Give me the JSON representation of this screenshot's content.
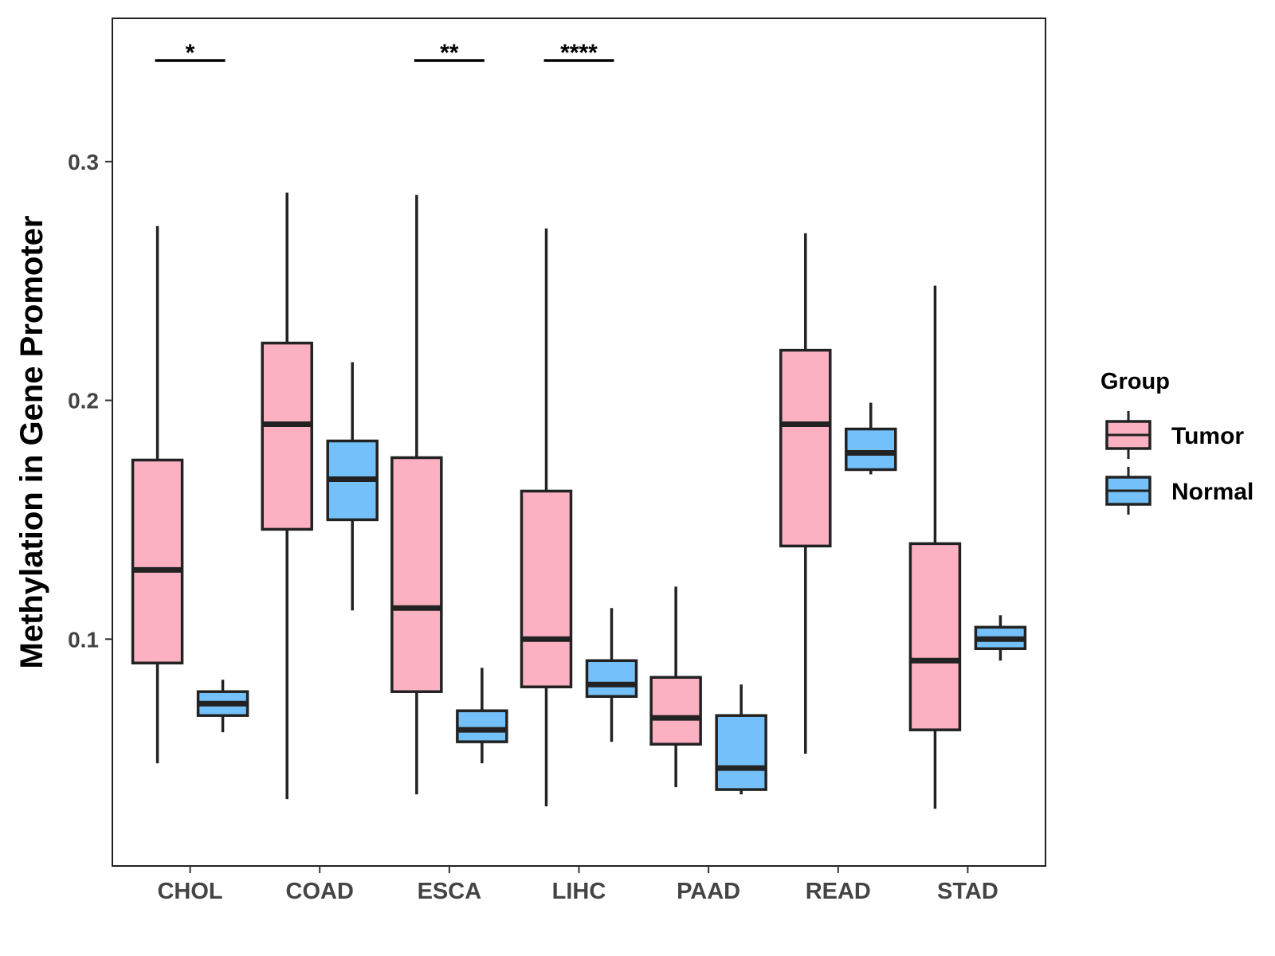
{
  "chart_data": {
    "type": "boxplot",
    "ylabel": "Methylation in Gene Promoter",
    "xlabel": "",
    "ylim": [
      0.005,
      0.36
    ],
    "yticks": [
      0.1,
      0.2,
      0.3
    ],
    "ytick_labels": [
      "0.1",
      "0.2",
      "0.3"
    ],
    "categories": [
      "CHOL",
      "COAD",
      "ESCA",
      "LIHC",
      "PAAD",
      "READ",
      "STAD"
    ],
    "legend": {
      "title": "Group",
      "position": "right",
      "entries": [
        {
          "name": "Tumor",
          "color": "#FCB1C3"
        },
        {
          "name": "Normal",
          "color": "#74C0FA"
        }
      ]
    },
    "series": [
      {
        "name": "Tumor",
        "color": "#FCB1C3",
        "boxes": [
          {
            "min": 0.048,
            "q1": 0.09,
            "median": 0.129,
            "q3": 0.175,
            "max": 0.273
          },
          {
            "min": 0.033,
            "q1": 0.146,
            "median": 0.19,
            "q3": 0.224,
            "max": 0.287
          },
          {
            "min": 0.035,
            "q1": 0.078,
            "median": 0.113,
            "q3": 0.176,
            "max": 0.286
          },
          {
            "min": 0.03,
            "q1": 0.08,
            "median": 0.1,
            "q3": 0.162,
            "max": 0.272
          },
          {
            "min": 0.038,
            "q1": 0.056,
            "median": 0.067,
            "q3": 0.084,
            "max": 0.122
          },
          {
            "min": 0.052,
            "q1": 0.139,
            "median": 0.19,
            "q3": 0.221,
            "max": 0.27
          },
          {
            "min": 0.029,
            "q1": 0.062,
            "median": 0.091,
            "q3": 0.14,
            "max": 0.248
          }
        ]
      },
      {
        "name": "Normal",
        "color": "#74C0FA",
        "boxes": [
          {
            "min": 0.061,
            "q1": 0.068,
            "median": 0.073,
            "q3": 0.078,
            "max": 0.083
          },
          {
            "min": 0.112,
            "q1": 0.15,
            "median": 0.167,
            "q3": 0.183,
            "max": 0.216
          },
          {
            "min": 0.048,
            "q1": 0.057,
            "median": 0.062,
            "q3": 0.07,
            "max": 0.088
          },
          {
            "min": 0.057,
            "q1": 0.076,
            "median": 0.081,
            "q3": 0.091,
            "max": 0.113
          },
          {
            "min": 0.035,
            "q1": 0.037,
            "median": 0.046,
            "q3": 0.068,
            "max": 0.081
          },
          {
            "min": 0.169,
            "q1": 0.171,
            "median": 0.178,
            "q3": 0.188,
            "max": 0.199
          },
          {
            "min": 0.091,
            "q1": 0.096,
            "median": 0.1,
            "q3": 0.105,
            "max": 0.11
          }
        ]
      }
    ],
    "significance": [
      {
        "category": "CHOL",
        "label": "*"
      },
      {
        "category": "ESCA",
        "label": "**"
      },
      {
        "category": "LIHC",
        "label": "****"
      }
    ]
  }
}
